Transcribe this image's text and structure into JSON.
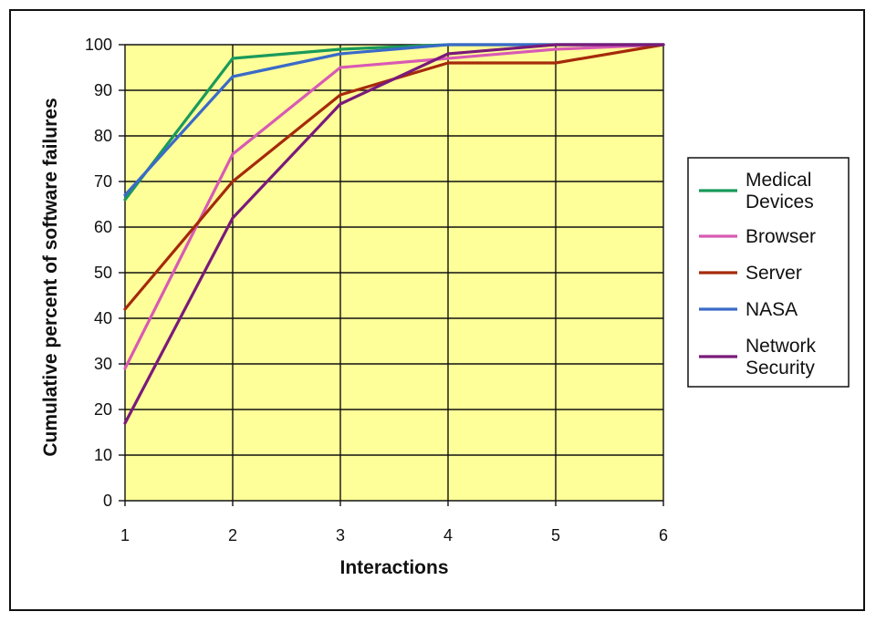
{
  "chart_data": {
    "type": "line",
    "title": "",
    "xlabel": "Interactions",
    "ylabel": "Cumulative percent of software failures",
    "x": [
      1,
      2,
      3,
      4,
      5,
      6
    ],
    "xlim": [
      1,
      6
    ],
    "ylim": [
      0,
      100
    ],
    "yticks": [
      0,
      10,
      20,
      30,
      40,
      50,
      60,
      70,
      80,
      90,
      100
    ],
    "xticks": [
      1,
      2,
      3,
      4,
      5,
      6
    ],
    "grid": true,
    "plot_background": "#ffff99",
    "legend_position": "right",
    "series": [
      {
        "name": "Medical Devices",
        "color": "#1a9a5a",
        "values": [
          66,
          97,
          99,
          100,
          100,
          100
        ]
      },
      {
        "name": "Browser",
        "color": "#d85ab4",
        "values": [
          29,
          76,
          95,
          97,
          99,
          100
        ]
      },
      {
        "name": "Server",
        "color": "#a52a0a",
        "values": [
          42,
          70,
          89,
          96,
          96,
          100
        ]
      },
      {
        "name": "NASA",
        "color": "#3a6ac8",
        "values": [
          67,
          93,
          98,
          100,
          100,
          100
        ]
      },
      {
        "name": "Network Security",
        "color": "#7a1a7a",
        "values": [
          17,
          62,
          87,
          98,
          100,
          100
        ]
      }
    ]
  }
}
